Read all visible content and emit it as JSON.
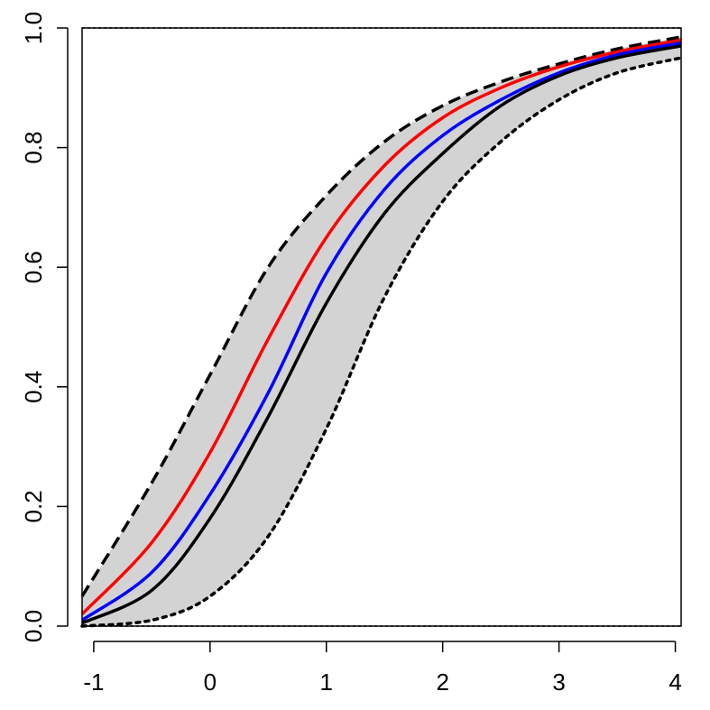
{
  "chart_data": {
    "type": "line",
    "title": "",
    "xlabel": "",
    "ylabel": "",
    "xlim": [
      -1.1,
      4.05
    ],
    "ylim": [
      0,
      1
    ],
    "x_ticks": [
      -1,
      0,
      1,
      2,
      3,
      4
    ],
    "x_tick_labels": [
      "-1",
      "0",
      "1",
      "2",
      "3",
      "4"
    ],
    "y_ticks": [
      0,
      0.2,
      0.4,
      0.6,
      0.8,
      1
    ],
    "y_tick_labels": [
      "0.0",
      "0.2",
      "0.4",
      "0.6",
      "0.8",
      "1.0"
    ],
    "grid": false,
    "legend": "none",
    "band": {
      "fill": "#d3d3d3",
      "x": [
        -1.1,
        -0.5,
        0,
        0.5,
        1,
        1.5,
        2,
        2.5,
        3,
        3.5,
        4.05
      ],
      "upper": [
        0.05,
        0.24,
        0.42,
        0.6,
        0.72,
        0.81,
        0.87,
        0.91,
        0.94,
        0.965,
        0.985
      ],
      "lower": [
        0.0,
        0.01,
        0.05,
        0.15,
        0.33,
        0.55,
        0.71,
        0.81,
        0.88,
        0.925,
        0.95
      ]
    },
    "series": [
      {
        "color": "#000000",
        "style": "dashed",
        "width": 3.5,
        "values": [
          0.05,
          0.24,
          0.42,
          0.6,
          0.72,
          0.81,
          0.87,
          0.91,
          0.94,
          0.965,
          0.985
        ]
      },
      {
        "color": "#000000",
        "style": "dotted",
        "width": 3.5,
        "values": [
          0.0,
          0.01,
          0.05,
          0.15,
          0.33,
          0.55,
          0.71,
          0.81,
          0.88,
          0.925,
          0.95
        ]
      },
      {
        "color": "#ff0000",
        "style": "solid",
        "width": 3.5,
        "values": [
          0.02,
          0.14,
          0.29,
          0.48,
          0.65,
          0.77,
          0.85,
          0.9,
          0.935,
          0.96,
          0.98
        ]
      },
      {
        "color": "#0000ff",
        "style": "solid",
        "width": 3.5,
        "values": [
          0.01,
          0.09,
          0.22,
          0.39,
          0.59,
          0.73,
          0.82,
          0.88,
          0.925,
          0.955,
          0.975
        ]
      },
      {
        "color": "#000000",
        "style": "solid",
        "width": 3.5,
        "values": [
          0.005,
          0.06,
          0.18,
          0.35,
          0.54,
          0.69,
          0.79,
          0.87,
          0.92,
          0.95,
          0.97
        ]
      }
    ]
  }
}
